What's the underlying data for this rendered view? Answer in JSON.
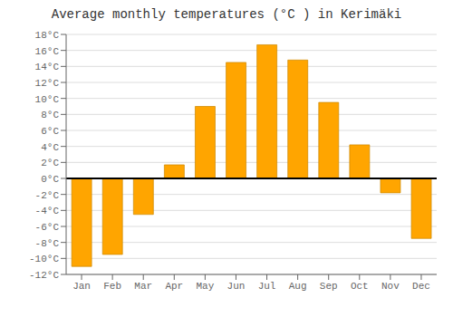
{
  "chart_data": {
    "type": "bar",
    "title": "Average monthly temperatures (°C ) in Kerimäki",
    "categories": [
      "Jan",
      "Feb",
      "Mar",
      "Apr",
      "May",
      "Jun",
      "Jul",
      "Aug",
      "Sep",
      "Oct",
      "Nov",
      "Dec"
    ],
    "values": [
      -11,
      -9.5,
      -4.5,
      1.7,
      9.0,
      14.5,
      16.7,
      14.8,
      9.5,
      4.2,
      -1.8,
      -7.5
    ],
    "color": "#FFA500",
    "ylim": [
      -12,
      18
    ],
    "yticks": [
      {
        "value": -12,
        "label": "-12°C"
      },
      {
        "value": -10,
        "label": "-10°C"
      },
      {
        "value": -8,
        "label": "-8°C"
      },
      {
        "value": -6,
        "label": "-6°C"
      },
      {
        "value": -4,
        "label": "-4°C"
      },
      {
        "value": -2,
        "label": "-2°C"
      },
      {
        "value": 0,
        "label": "0°C"
      },
      {
        "value": 2,
        "label": "2°C"
      },
      {
        "value": 4,
        "label": "4°C"
      },
      {
        "value": 6,
        "label": "6°C"
      },
      {
        "value": 8,
        "label": "8°C"
      },
      {
        "value": 10,
        "label": "10°C"
      },
      {
        "value": 12,
        "label": "12°C"
      },
      {
        "value": 14,
        "label": "14°C"
      },
      {
        "value": 16,
        "label": "16°C"
      },
      {
        "value": 18,
        "label": "18°C"
      }
    ],
    "grid": true
  }
}
